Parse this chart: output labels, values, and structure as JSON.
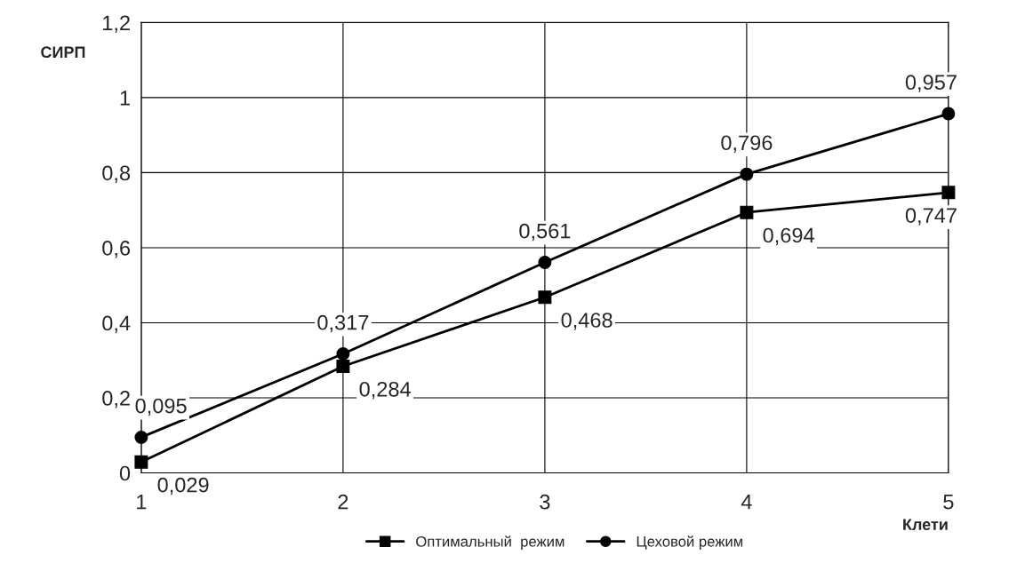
{
  "chart_data": {
    "type": "line",
    "xlabel": "Клети",
    "ylabel": "СИРП",
    "x": [
      1,
      2,
      3,
      4,
      5
    ],
    "xlim": [
      1,
      5
    ],
    "xticks": [
      1,
      2,
      3,
      4,
      5
    ],
    "ylim": [
      0,
      1.2
    ],
    "yticks": [
      0,
      {
        "value": 0.2,
        "label": "0,2"
      },
      {
        "value": 0.4,
        "label": "0,4"
      },
      {
        "value": 0.6,
        "label": "0,6"
      },
      {
        "value": 0.8,
        "label": "0,8"
      },
      1,
      {
        "value": 1.2,
        "label": "1,2"
      }
    ],
    "grid": true,
    "legend": "bottom",
    "line_style": "solid",
    "series": [
      {
        "name": "Оптимальный  режим",
        "color": "#000000",
        "marker": "square",
        "values": [
          0.029,
          0.284,
          0.468,
          0.694,
          0.747
        ],
        "value_labels": [
          "0,029",
          "0,284",
          "0,468",
          "0,694",
          "0,747"
        ]
      },
      {
        "name": "Цеховой режим",
        "color": "#000000",
        "marker": "circle",
        "values": [
          0.095,
          0.317,
          0.561,
          0.796,
          0.957
        ],
        "value_labels": [
          "0,095",
          "0,317",
          "0,561",
          "0,796",
          "0,957"
        ]
      }
    ]
  }
}
